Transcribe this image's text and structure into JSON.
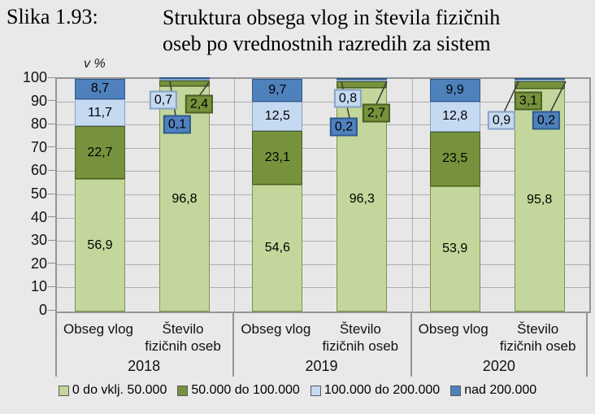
{
  "figure": {
    "label": "Slika 1.93:",
    "title_line1": "Struktura obsega vlog in števila fizičnih",
    "title_line2": "oseb po vrednostnih razredih za sistem"
  },
  "chart_data": {
    "type": "bar",
    "stacked": true,
    "unit_label": "v %",
    "ylim": [
      0,
      100
    ],
    "yticks": [
      100,
      90,
      80,
      70,
      60,
      50,
      40,
      30,
      20,
      10,
      0
    ],
    "grid": true,
    "legend_position": "bottom",
    "series": [
      {
        "name": "0 do vklj. 50.000",
        "color": "#c3d69b"
      },
      {
        "name": "50.000 do 100.000",
        "color": "#76923c"
      },
      {
        "name": "100.000 do 200.000",
        "color": "#c5d9f1"
      },
      {
        "name": "nad 200.000",
        "color": "#4f81bd"
      }
    ],
    "groups": [
      {
        "year": "2018",
        "bars": [
          {
            "category_lines": [
              "Obseg vlog"
            ],
            "values": [
              56.9,
              22.7,
              11.7,
              8.7
            ],
            "labels": [
              "56,9",
              "22,7",
              "11,7",
              "8,7"
            ]
          },
          {
            "category_lines": [
              "Število",
              "fizičnih oseb"
            ],
            "values": [
              96.8,
              2.4,
              0.7,
              0.1
            ],
            "labels": [
              "96,8",
              "2,4",
              "0,7",
              "0,1"
            ]
          }
        ]
      },
      {
        "year": "2019",
        "bars": [
          {
            "category_lines": [
              "Obseg vlog"
            ],
            "values": [
              54.6,
              23.1,
              12.5,
              9.7
            ],
            "labels": [
              "54,6",
              "23,1",
              "12,5",
              "9,7"
            ]
          },
          {
            "category_lines": [
              "Število",
              "fizičnih oseb"
            ],
            "values": [
              96.3,
              2.7,
              0.8,
              0.2
            ],
            "labels": [
              "96,3",
              "2,7",
              "0,8",
              "0,2"
            ]
          }
        ]
      },
      {
        "year": "2020",
        "bars": [
          {
            "category_lines": [
              "Obseg vlog"
            ],
            "values": [
              53.9,
              23.5,
              12.8,
              9.9
            ],
            "labels": [
              "53,9",
              "23,5",
              "12,8",
              "9,9"
            ]
          },
          {
            "category_lines": [
              "Število",
              "fizičnih oseb"
            ],
            "values": [
              95.8,
              3.1,
              0.9,
              0.2
            ],
            "labels": [
              "95,8",
              "3,1",
              "0,9",
              "0,2"
            ]
          }
        ]
      }
    ]
  }
}
